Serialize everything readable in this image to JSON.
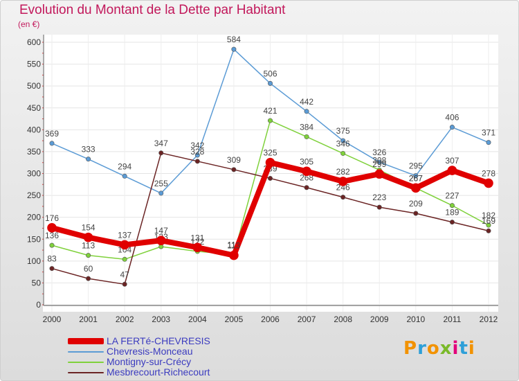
{
  "chart_data": {
    "type": "line",
    "title": "Evolution du Montant de la Dette par Habitant",
    "subtitle": "(en €)",
    "xlabel": "",
    "ylabel": "",
    "ylim": [
      0,
      600
    ],
    "yticks": [
      0,
      50,
      100,
      150,
      200,
      250,
      300,
      350,
      400,
      450,
      500,
      550,
      600
    ],
    "x": [
      "2000",
      "2001",
      "2002",
      "2003",
      "2004",
      "2005",
      "2006",
      "2007",
      "2008",
      "2009",
      "2010",
      "2011",
      "2012"
    ],
    "grid": true,
    "series": [
      {
        "name": "Chevresis-Monceau",
        "color": "#5b9bd5",
        "values": [
          369,
          333,
          294,
          255,
          342,
          584,
          506,
          442,
          375,
          326,
          295,
          406,
          371
        ]
      },
      {
        "name": "Montigny-sur-Crécy",
        "color": "#7fd13b",
        "values": [
          136,
          113,
          104,
          133,
          122,
          115,
          421,
          384,
          346,
          308,
          267,
          227,
          182
        ]
      },
      {
        "name": "Mesbrecourt-Richecourt",
        "color": "#6b2424",
        "values": [
          83,
          60,
          47,
          347,
          328,
          309,
          289,
          268,
          246,
          223,
          209,
          189,
          169
        ]
      },
      {
        "name": "LA FERTé-CHEVRESIS",
        "color": "#e00000",
        "values": [
          176,
          154,
          137,
          147,
          131,
          113,
          325,
          305,
          282,
          299,
          267,
          307,
          278
        ]
      }
    ]
  },
  "legend": [
    {
      "name": "LA FERTé-CHEVRESIS",
      "color": "#e00000"
    },
    {
      "name": "Chevresis-Monceau",
      "color": "#5b9bd5"
    },
    {
      "name": "Montigny-sur-Crécy",
      "color": "#7fd13b"
    },
    {
      "name": "Mesbrecourt-Richecourt",
      "color": "#6b2424"
    }
  ],
  "logo": {
    "text": "Proxiti"
  }
}
